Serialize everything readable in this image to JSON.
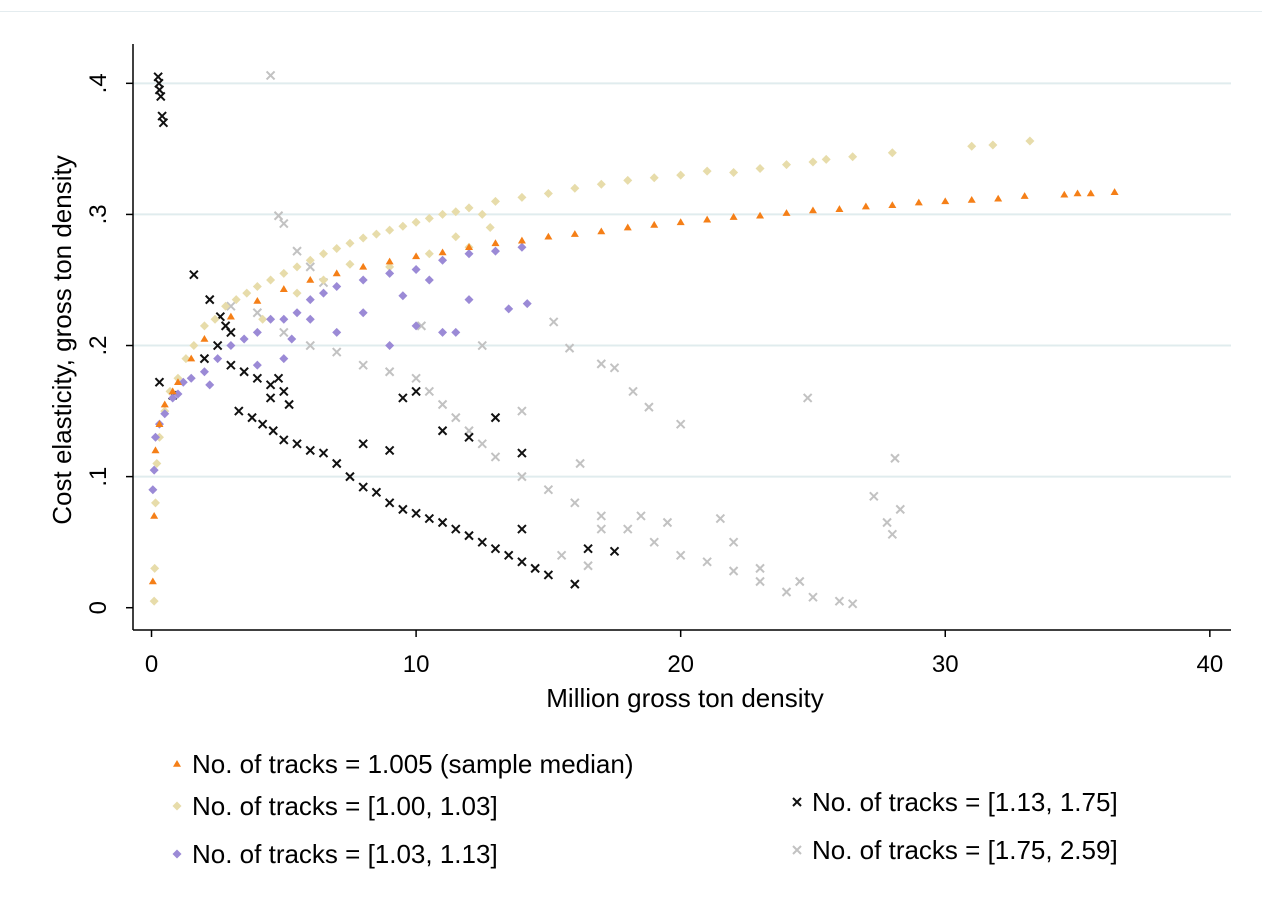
{
  "chart_data": {
    "type": "scatter",
    "title": "",
    "xlabel": "Million gross ton density",
    "ylabel": "Cost elasticity, gross ton density",
    "xlim": [
      -0.7,
      40.8
    ],
    "ylim": [
      -0.017,
      0.43
    ],
    "xticks": [
      0,
      10,
      20,
      30,
      40
    ],
    "xtick_labels": [
      "0",
      "10",
      "20",
      "30",
      "40"
    ],
    "yticks": [
      0,
      0.1,
      0.2,
      0.3,
      0.4
    ],
    "ytick_labels": [
      "0",
      ".1",
      ".2",
      ".3",
      ".4"
    ],
    "grid": "horizontal",
    "legend_position": "bottom",
    "series": [
      {
        "name": "No. of tracks = 1.005 (sample median)",
        "marker": "triangle",
        "color": "#f57f17",
        "points": [
          [
            0.05,
            0.02
          ],
          [
            0.1,
            0.07
          ],
          [
            0.15,
            0.12
          ],
          [
            0.3,
            0.14
          ],
          [
            0.5,
            0.155
          ],
          [
            0.8,
            0.165
          ],
          [
            1.0,
            0.172
          ],
          [
            1.5,
            0.19
          ],
          [
            2.0,
            0.205
          ],
          [
            3.0,
            0.222
          ],
          [
            4.0,
            0.234
          ],
          [
            5.0,
            0.243
          ],
          [
            6.0,
            0.25
          ],
          [
            7.0,
            0.255
          ],
          [
            8.0,
            0.26
          ],
          [
            9.0,
            0.264
          ],
          [
            10.0,
            0.268
          ],
          [
            11.0,
            0.271
          ],
          [
            12.0,
            0.275
          ],
          [
            13.0,
            0.278
          ],
          [
            14.0,
            0.28
          ],
          [
            15.0,
            0.283
          ],
          [
            16.0,
            0.285
          ],
          [
            17.0,
            0.287
          ],
          [
            18.0,
            0.29
          ],
          [
            19.0,
            0.292
          ],
          [
            20.0,
            0.294
          ],
          [
            21.0,
            0.296
          ],
          [
            22.0,
            0.298
          ],
          [
            23.0,
            0.299
          ],
          [
            24.0,
            0.301
          ],
          [
            25.0,
            0.303
          ],
          [
            26.0,
            0.304
          ],
          [
            27.0,
            0.306
          ],
          [
            28.0,
            0.307
          ],
          [
            29.0,
            0.309
          ],
          [
            30.0,
            0.31
          ],
          [
            31.0,
            0.311
          ],
          [
            32.0,
            0.312
          ],
          [
            33.0,
            0.314
          ],
          [
            34.5,
            0.315
          ],
          [
            35.0,
            0.316
          ],
          [
            35.5,
            0.316
          ],
          [
            36.4,
            0.317
          ]
        ]
      },
      {
        "name": "No. of tracks = [1.00, 1.03]",
        "marker": "diamond",
        "color": "#e7dcaa",
        "points": [
          [
            0.1,
            0.005
          ],
          [
            0.12,
            0.03
          ],
          [
            0.15,
            0.08
          ],
          [
            0.2,
            0.11
          ],
          [
            0.3,
            0.13
          ],
          [
            0.5,
            0.15
          ],
          [
            0.7,
            0.165
          ],
          [
            1.0,
            0.175
          ],
          [
            1.3,
            0.19
          ],
          [
            1.6,
            0.2
          ],
          [
            2.0,
            0.215
          ],
          [
            2.4,
            0.22
          ],
          [
            2.8,
            0.23
          ],
          [
            3.2,
            0.235
          ],
          [
            3.6,
            0.24
          ],
          [
            4.0,
            0.245
          ],
          [
            4.5,
            0.25
          ],
          [
            5.0,
            0.255
          ],
          [
            5.5,
            0.26
          ],
          [
            6.0,
            0.265
          ],
          [
            6.5,
            0.27
          ],
          [
            7.0,
            0.274
          ],
          [
            7.5,
            0.278
          ],
          [
            8.0,
            0.282
          ],
          [
            8.5,
            0.285
          ],
          [
            9.0,
            0.288
          ],
          [
            9.5,
            0.291
          ],
          [
            10.0,
            0.294
          ],
          [
            10.5,
            0.297
          ],
          [
            11.0,
            0.3
          ],
          [
            11.5,
            0.302
          ],
          [
            12.0,
            0.305
          ],
          [
            12.5,
            0.3
          ],
          [
            13.0,
            0.31
          ],
          [
            14.0,
            0.313
          ],
          [
            15.0,
            0.316
          ],
          [
            16.0,
            0.32
          ],
          [
            17.0,
            0.323
          ],
          [
            18.0,
            0.326
          ],
          [
            19.0,
            0.328
          ],
          [
            20.0,
            0.33
          ],
          [
            21.0,
            0.333
          ],
          [
            22.0,
            0.332
          ],
          [
            23.0,
            0.335
          ],
          [
            24.0,
            0.338
          ],
          [
            25.0,
            0.34
          ],
          [
            25.5,
            0.342
          ],
          [
            26.5,
            0.344
          ],
          [
            28.0,
            0.347
          ],
          [
            31.0,
            0.352
          ],
          [
            31.8,
            0.353
          ],
          [
            33.2,
            0.356
          ],
          [
            4.2,
            0.22
          ],
          [
            5.5,
            0.24
          ],
          [
            6.5,
            0.25
          ],
          [
            7.5,
            0.262
          ],
          [
            9.0,
            0.26
          ],
          [
            10.5,
            0.27
          ],
          [
            11.5,
            0.283
          ],
          [
            12.8,
            0.29
          ],
          [
            12.0,
            0.275
          ]
        ]
      },
      {
        "name": "No. of tracks = [1.03, 1.13]",
        "marker": "diamond",
        "color": "#9b8ad6",
        "points": [
          [
            0.05,
            0.09
          ],
          [
            0.1,
            0.105
          ],
          [
            0.15,
            0.13
          ],
          [
            0.3,
            0.14
          ],
          [
            0.5,
            0.148
          ],
          [
            0.8,
            0.16
          ],
          [
            1.0,
            0.163
          ],
          [
            1.5,
            0.175
          ],
          [
            2.0,
            0.18
          ],
          [
            2.5,
            0.19
          ],
          [
            3.0,
            0.2
          ],
          [
            3.5,
            0.205
          ],
          [
            4.0,
            0.21
          ],
          [
            4.5,
            0.22
          ],
          [
            5.0,
            0.22
          ],
          [
            5.5,
            0.225
          ],
          [
            6.0,
            0.235
          ],
          [
            6.5,
            0.24
          ],
          [
            7.0,
            0.245
          ],
          [
            8.0,
            0.25
          ],
          [
            9.0,
            0.255
          ],
          [
            10.0,
            0.258
          ],
          [
            11.0,
            0.265
          ],
          [
            12.0,
            0.27
          ],
          [
            13.0,
            0.272
          ],
          [
            14.0,
            0.275
          ],
          [
            1.2,
            0.172
          ],
          [
            2.2,
            0.17
          ],
          [
            4.0,
            0.185
          ],
          [
            5.0,
            0.19
          ],
          [
            5.3,
            0.205
          ],
          [
            6.0,
            0.22
          ],
          [
            7.0,
            0.21
          ],
          [
            8.0,
            0.225
          ],
          [
            9.5,
            0.238
          ],
          [
            10.5,
            0.25
          ],
          [
            11.5,
            0.21
          ],
          [
            12.0,
            0.235
          ],
          [
            13.5,
            0.228
          ],
          [
            14.2,
            0.232
          ],
          [
            9.0,
            0.2
          ],
          [
            10.0,
            0.215
          ],
          [
            11.0,
            0.21
          ]
        ]
      },
      {
        "name": "No. of tracks = [1.13, 1.75]",
        "marker": "x",
        "color": "#111111",
        "points": [
          [
            0.25,
            0.405
          ],
          [
            0.28,
            0.4
          ],
          [
            0.3,
            0.395
          ],
          [
            0.35,
            0.39
          ],
          [
            0.4,
            0.375
          ],
          [
            0.45,
            0.37
          ],
          [
            0.3,
            0.172
          ],
          [
            0.8,
            0.162
          ],
          [
            1.6,
            0.254
          ],
          [
            2.2,
            0.235
          ],
          [
            2.6,
            0.222
          ],
          [
            2.8,
            0.215
          ],
          [
            3.0,
            0.21
          ],
          [
            2.0,
            0.19
          ],
          [
            2.5,
            0.2
          ],
          [
            3.0,
            0.185
          ],
          [
            3.5,
            0.18
          ],
          [
            4.0,
            0.175
          ],
          [
            4.5,
            0.17
          ],
          [
            5.0,
            0.165
          ],
          [
            3.3,
            0.15
          ],
          [
            3.8,
            0.145
          ],
          [
            4.2,
            0.14
          ],
          [
            4.6,
            0.135
          ],
          [
            5.0,
            0.128
          ],
          [
            5.5,
            0.125
          ],
          [
            6.0,
            0.12
          ],
          [
            6.5,
            0.118
          ],
          [
            7.0,
            0.11
          ],
          [
            7.5,
            0.1
          ],
          [
            8.0,
            0.092
          ],
          [
            8.5,
            0.088
          ],
          [
            9.0,
            0.08
          ],
          [
            9.5,
            0.075
          ],
          [
            10.0,
            0.072
          ],
          [
            10.5,
            0.068
          ],
          [
            11.0,
            0.065
          ],
          [
            11.5,
            0.06
          ],
          [
            12.0,
            0.055
          ],
          [
            12.5,
            0.05
          ],
          [
            13.0,
            0.045
          ],
          [
            13.5,
            0.04
          ],
          [
            14.0,
            0.035
          ],
          [
            14.5,
            0.03
          ],
          [
            15.0,
            0.025
          ],
          [
            16.0,
            0.018
          ],
          [
            16.5,
            0.045
          ],
          [
            17.5,
            0.043
          ],
          [
            8.0,
            0.125
          ],
          [
            9.0,
            0.12
          ],
          [
            9.5,
            0.16
          ],
          [
            10.0,
            0.165
          ],
          [
            11.0,
            0.135
          ],
          [
            12.0,
            0.13
          ],
          [
            13.0,
            0.145
          ],
          [
            14.0,
            0.118
          ],
          [
            14.0,
            0.06
          ],
          [
            4.5,
            0.16
          ],
          [
            5.2,
            0.155
          ],
          [
            4.8,
            0.175
          ]
        ]
      },
      {
        "name": "No. of tracks = [1.75, 2.59]",
        "marker": "x",
        "color": "#c2c2c2",
        "points": [
          [
            4.5,
            0.406
          ],
          [
            4.8,
            0.299
          ],
          [
            5.0,
            0.293
          ],
          [
            5.5,
            0.272
          ],
          [
            6.0,
            0.26
          ],
          [
            6.5,
            0.248
          ],
          [
            3.0,
            0.23
          ],
          [
            4.0,
            0.225
          ],
          [
            5.0,
            0.21
          ],
          [
            6.0,
            0.2
          ],
          [
            7.0,
            0.195
          ],
          [
            8.0,
            0.185
          ],
          [
            9.0,
            0.18
          ],
          [
            10.0,
            0.175
          ],
          [
            10.5,
            0.165
          ],
          [
            11.0,
            0.155
          ],
          [
            11.5,
            0.145
          ],
          [
            12.0,
            0.135
          ],
          [
            12.5,
            0.125
          ],
          [
            13.0,
            0.115
          ],
          [
            14.0,
            0.1
          ],
          [
            15.0,
            0.09
          ],
          [
            16.0,
            0.08
          ],
          [
            17.0,
            0.07
          ],
          [
            18.0,
            0.06
          ],
          [
            19.0,
            0.05
          ],
          [
            20.0,
            0.04
          ],
          [
            21.0,
            0.035
          ],
          [
            22.0,
            0.028
          ],
          [
            23.0,
            0.02
          ],
          [
            24.0,
            0.012
          ],
          [
            25.0,
            0.008
          ],
          [
            26.0,
            0.005
          ],
          [
            26.5,
            0.003
          ],
          [
            15.2,
            0.218
          ],
          [
            15.8,
            0.198
          ],
          [
            17.0,
            0.186
          ],
          [
            17.5,
            0.183
          ],
          [
            18.2,
            0.165
          ],
          [
            18.8,
            0.153
          ],
          [
            20.0,
            0.14
          ],
          [
            24.8,
            0.16
          ],
          [
            16.2,
            0.11
          ],
          [
            14.0,
            0.15
          ],
          [
            12.5,
            0.2
          ],
          [
            10.2,
            0.215
          ],
          [
            27.3,
            0.085
          ],
          [
            27.8,
            0.065
          ],
          [
            28.0,
            0.056
          ],
          [
            28.1,
            0.114
          ],
          [
            28.3,
            0.075
          ],
          [
            21.5,
            0.068
          ],
          [
            22.0,
            0.05
          ],
          [
            23.0,
            0.03
          ],
          [
            24.5,
            0.02
          ],
          [
            19.5,
            0.065
          ],
          [
            18.5,
            0.07
          ],
          [
            17.0,
            0.06
          ],
          [
            16.5,
            0.032
          ],
          [
            15.5,
            0.04
          ]
        ]
      }
    ]
  }
}
